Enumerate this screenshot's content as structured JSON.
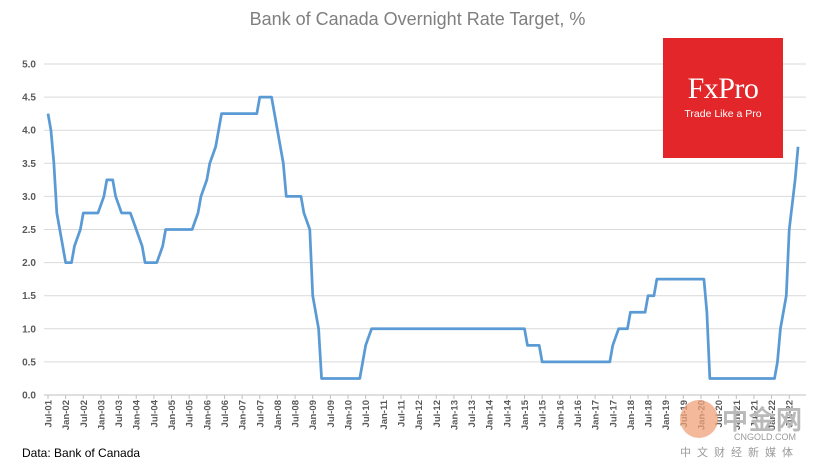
{
  "chart_data": {
    "type": "line",
    "title": "Bank of Canada Overnight Rate Target, %",
    "xlabel": "",
    "ylabel": "",
    "ylim": [
      0,
      5
    ],
    "yticks": [
      "0.0",
      "0.5",
      "1.0",
      "1.5",
      "2.0",
      "2.5",
      "3.0",
      "3.5",
      "4.0",
      "4.5",
      "5.0"
    ],
    "grid": true,
    "legend": "none",
    "line_color": "#5b9bd5",
    "x_tick_labels": [
      "Jul-01",
      "Jan-02",
      "Jul-02",
      "Jan-03",
      "Jul-03",
      "Jan-04",
      "Jul-04",
      "Jan-05",
      "Jul-05",
      "Jan-06",
      "Jul-06",
      "Jan-07",
      "Jul-07",
      "Jan-08",
      "Jul-08",
      "Jan-09",
      "Jul-09",
      "Jan-10",
      "Jul-10",
      "Jan-11",
      "Jul-11",
      "Jan-12",
      "Jul-12",
      "Jan-13",
      "Jul-13",
      "Jan-14",
      "Jul-14",
      "Jan-15",
      "Jul-15",
      "Jan-16",
      "Jul-16",
      "Jan-17",
      "Jul-17",
      "Jan-18",
      "Jul-18",
      "Jan-19",
      "Jul-19",
      "Jan-20",
      "Jul-20",
      "Jan-21",
      "Jul-21",
      "Jan-22",
      "Jul-22"
    ],
    "series": [
      {
        "name": "",
        "points": [
          [
            "2001-07",
            4.25
          ],
          [
            "2001-08",
            4.0
          ],
          [
            "2001-09",
            3.5
          ],
          [
            "2001-10",
            2.75
          ],
          [
            "2001-11",
            2.5
          ],
          [
            "2001-12",
            2.25
          ],
          [
            "2002-01",
            2.0
          ],
          [
            "2002-03",
            2.0
          ],
          [
            "2002-04",
            2.25
          ],
          [
            "2002-06",
            2.5
          ],
          [
            "2002-07",
            2.75
          ],
          [
            "2002-12",
            2.75
          ],
          [
            "2003-02",
            3.0
          ],
          [
            "2003-03",
            3.25
          ],
          [
            "2003-05",
            3.25
          ],
          [
            "2003-06",
            3.0
          ],
          [
            "2003-08",
            2.75
          ],
          [
            "2003-11",
            2.75
          ],
          [
            "2004-01",
            2.5
          ],
          [
            "2004-03",
            2.25
          ],
          [
            "2004-04",
            2.0
          ],
          [
            "2004-08",
            2.0
          ],
          [
            "2004-10",
            2.25
          ],
          [
            "2004-11",
            2.5
          ],
          [
            "2005-08",
            2.5
          ],
          [
            "2005-10",
            2.75
          ],
          [
            "2005-11",
            3.0
          ],
          [
            "2006-01",
            3.25
          ],
          [
            "2006-02",
            3.5
          ],
          [
            "2006-04",
            3.75
          ],
          [
            "2006-05",
            4.0
          ],
          [
            "2006-06",
            4.25
          ],
          [
            "2007-06",
            4.25
          ],
          [
            "2007-07",
            4.5
          ],
          [
            "2007-11",
            4.5
          ],
          [
            "2007-12",
            4.25
          ],
          [
            "2008-01",
            4.0
          ],
          [
            "2008-03",
            3.5
          ],
          [
            "2008-04",
            3.0
          ],
          [
            "2008-09",
            3.0
          ],
          [
            "2008-10",
            2.75
          ],
          [
            "2008-12",
            2.5
          ],
          [
            "2009-01",
            1.5
          ],
          [
            "2009-03",
            1.0
          ],
          [
            "2009-04",
            0.25
          ],
          [
            "2010-05",
            0.25
          ],
          [
            "2010-06",
            0.5
          ],
          [
            "2010-07",
            0.75
          ],
          [
            "2010-09",
            1.0
          ],
          [
            "2015-01",
            1.0
          ],
          [
            "2015-02",
            0.75
          ],
          [
            "2015-06",
            0.75
          ],
          [
            "2015-07",
            0.5
          ],
          [
            "2017-06",
            0.5
          ],
          [
            "2017-07",
            0.75
          ],
          [
            "2017-09",
            1.0
          ],
          [
            "2017-12",
            1.0
          ],
          [
            "2018-01",
            1.25
          ],
          [
            "2018-06",
            1.25
          ],
          [
            "2018-07",
            1.5
          ],
          [
            "2018-09",
            1.5
          ],
          [
            "2018-10",
            1.75
          ],
          [
            "2020-02",
            1.75
          ],
          [
            "2020-03",
            1.25
          ],
          [
            "2020-04",
            0.25
          ],
          [
            "2022-02",
            0.25
          ],
          [
            "2022-03",
            0.5
          ],
          [
            "2022-04",
            1.0
          ],
          [
            "2022-06",
            1.5
          ],
          [
            "2022-07",
            2.5
          ],
          [
            "2022-09",
            3.25
          ],
          [
            "2022-10",
            3.75
          ]
        ]
      }
    ]
  },
  "source": "Data: Bank of Canada",
  "logo": {
    "name": "FxPro",
    "tagline": "Trade Like a Pro",
    "color": "#e3262a"
  },
  "watermark": {
    "chinese": "中金网",
    "url": "CNGOLD.COM",
    "sub": "中文财经新媒体"
  }
}
